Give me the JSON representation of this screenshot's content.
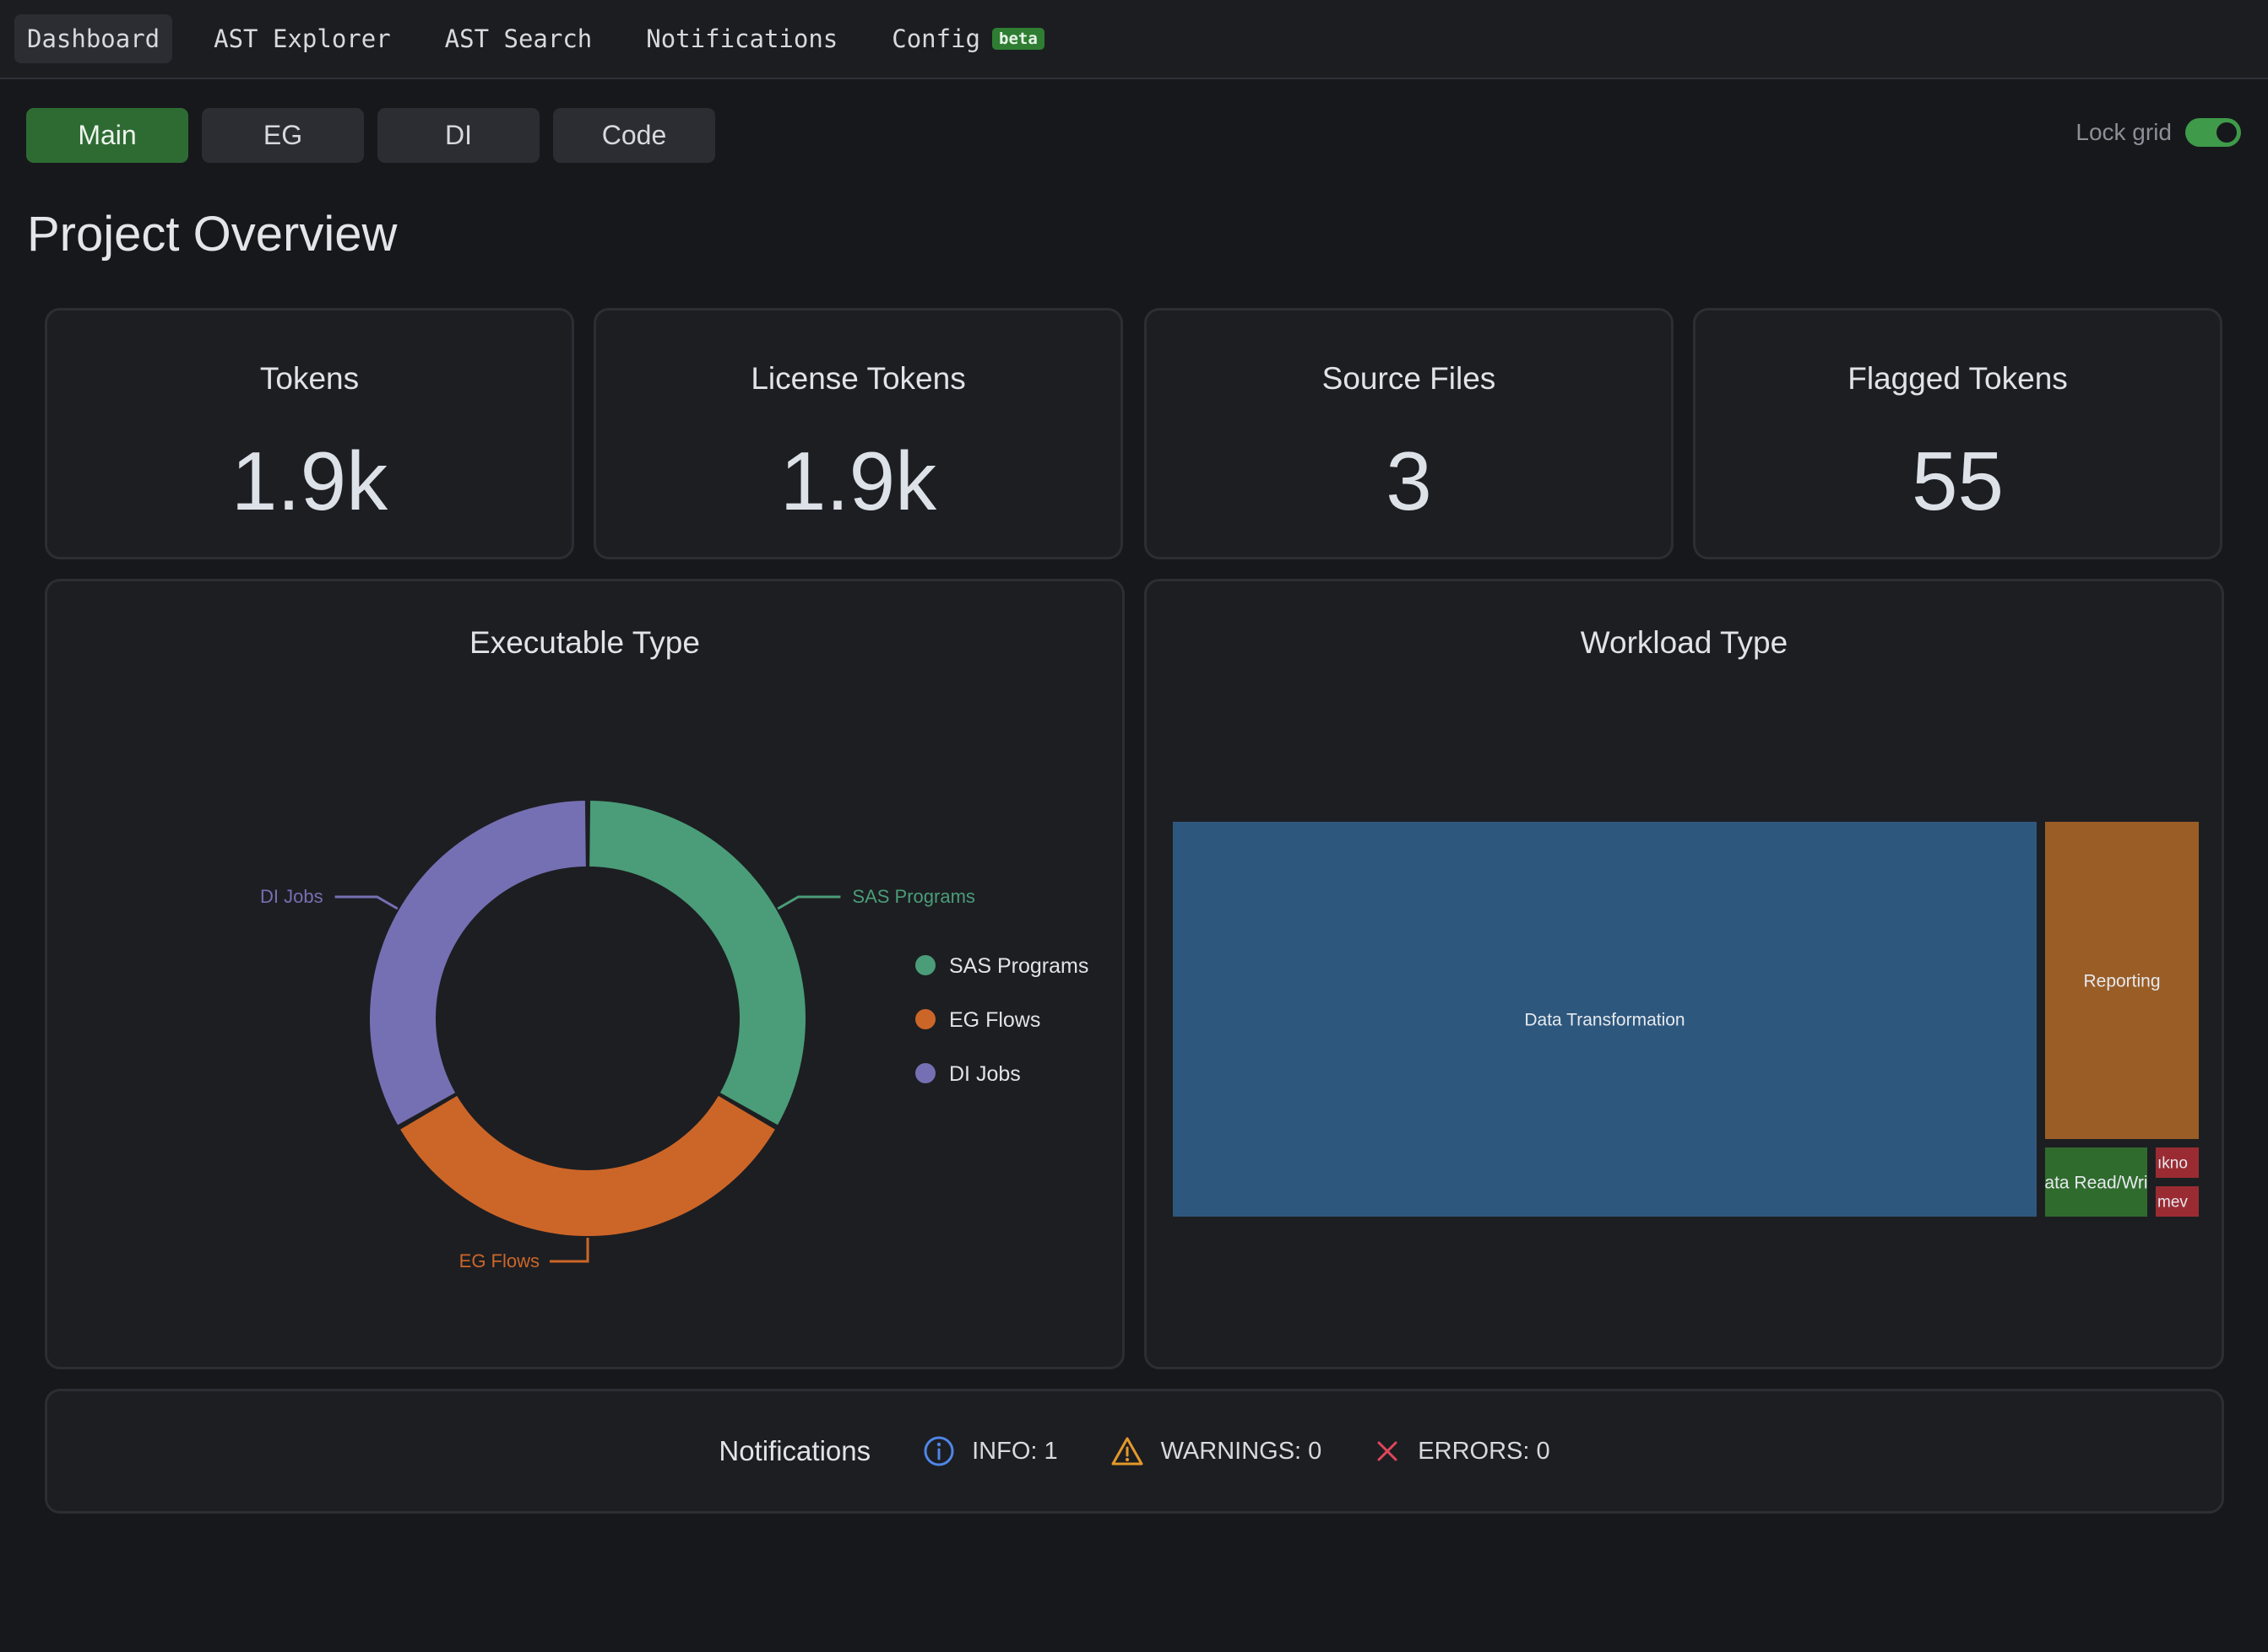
{
  "nav": {
    "items": [
      {
        "label": "Dashboard",
        "active": true
      },
      {
        "label": "AST Explorer",
        "active": false
      },
      {
        "label": "AST Search",
        "active": false
      },
      {
        "label": "Notifications",
        "active": false
      },
      {
        "label": "Config",
        "active": false
      }
    ],
    "config_badge": "beta"
  },
  "subtabs": [
    {
      "label": "Main",
      "active": true
    },
    {
      "label": "EG",
      "active": false
    },
    {
      "label": "DI",
      "active": false
    },
    {
      "label": "Code",
      "active": false
    }
  ],
  "lock_grid": {
    "label": "Lock grid",
    "on": true
  },
  "page_title": "Project Overview",
  "stats": [
    {
      "title": "Tokens",
      "value": "1.9k"
    },
    {
      "title": "License Tokens",
      "value": "1.9k"
    },
    {
      "title": "Source Files",
      "value": "3"
    },
    {
      "title": "Flagged Tokens",
      "value": "55"
    }
  ],
  "notifications": {
    "title": "Notifications",
    "info": "INFO: 1",
    "warnings": "WARNINGS: 0",
    "errors": "ERRORS: 0"
  },
  "colors": {
    "accent_green": "#2e6b33",
    "sas": "#4a9d78",
    "eg": "#cc6628",
    "di": "#7570b3",
    "data_transformation": "#2e577d",
    "reporting": "#9a5d26",
    "data_rw": "#2f6b2d",
    "unknown": "#9b2b33"
  },
  "chart_data": [
    {
      "type": "pie",
      "title": "Executable Type",
      "categories": [
        "SAS Programs",
        "EG Flows",
        "DI Jobs"
      ],
      "values": [
        1,
        1,
        1
      ],
      "legend": "right",
      "donut": true
    },
    {
      "type": "treemap",
      "title": "Workload Type",
      "categories": [
        "Data Transformation",
        "Reporting",
        "ata Read/Wri",
        "ıkno",
        "mev"
      ],
      "values": [
        85,
        13,
        1.2,
        0.4,
        0.4
      ]
    }
  ]
}
